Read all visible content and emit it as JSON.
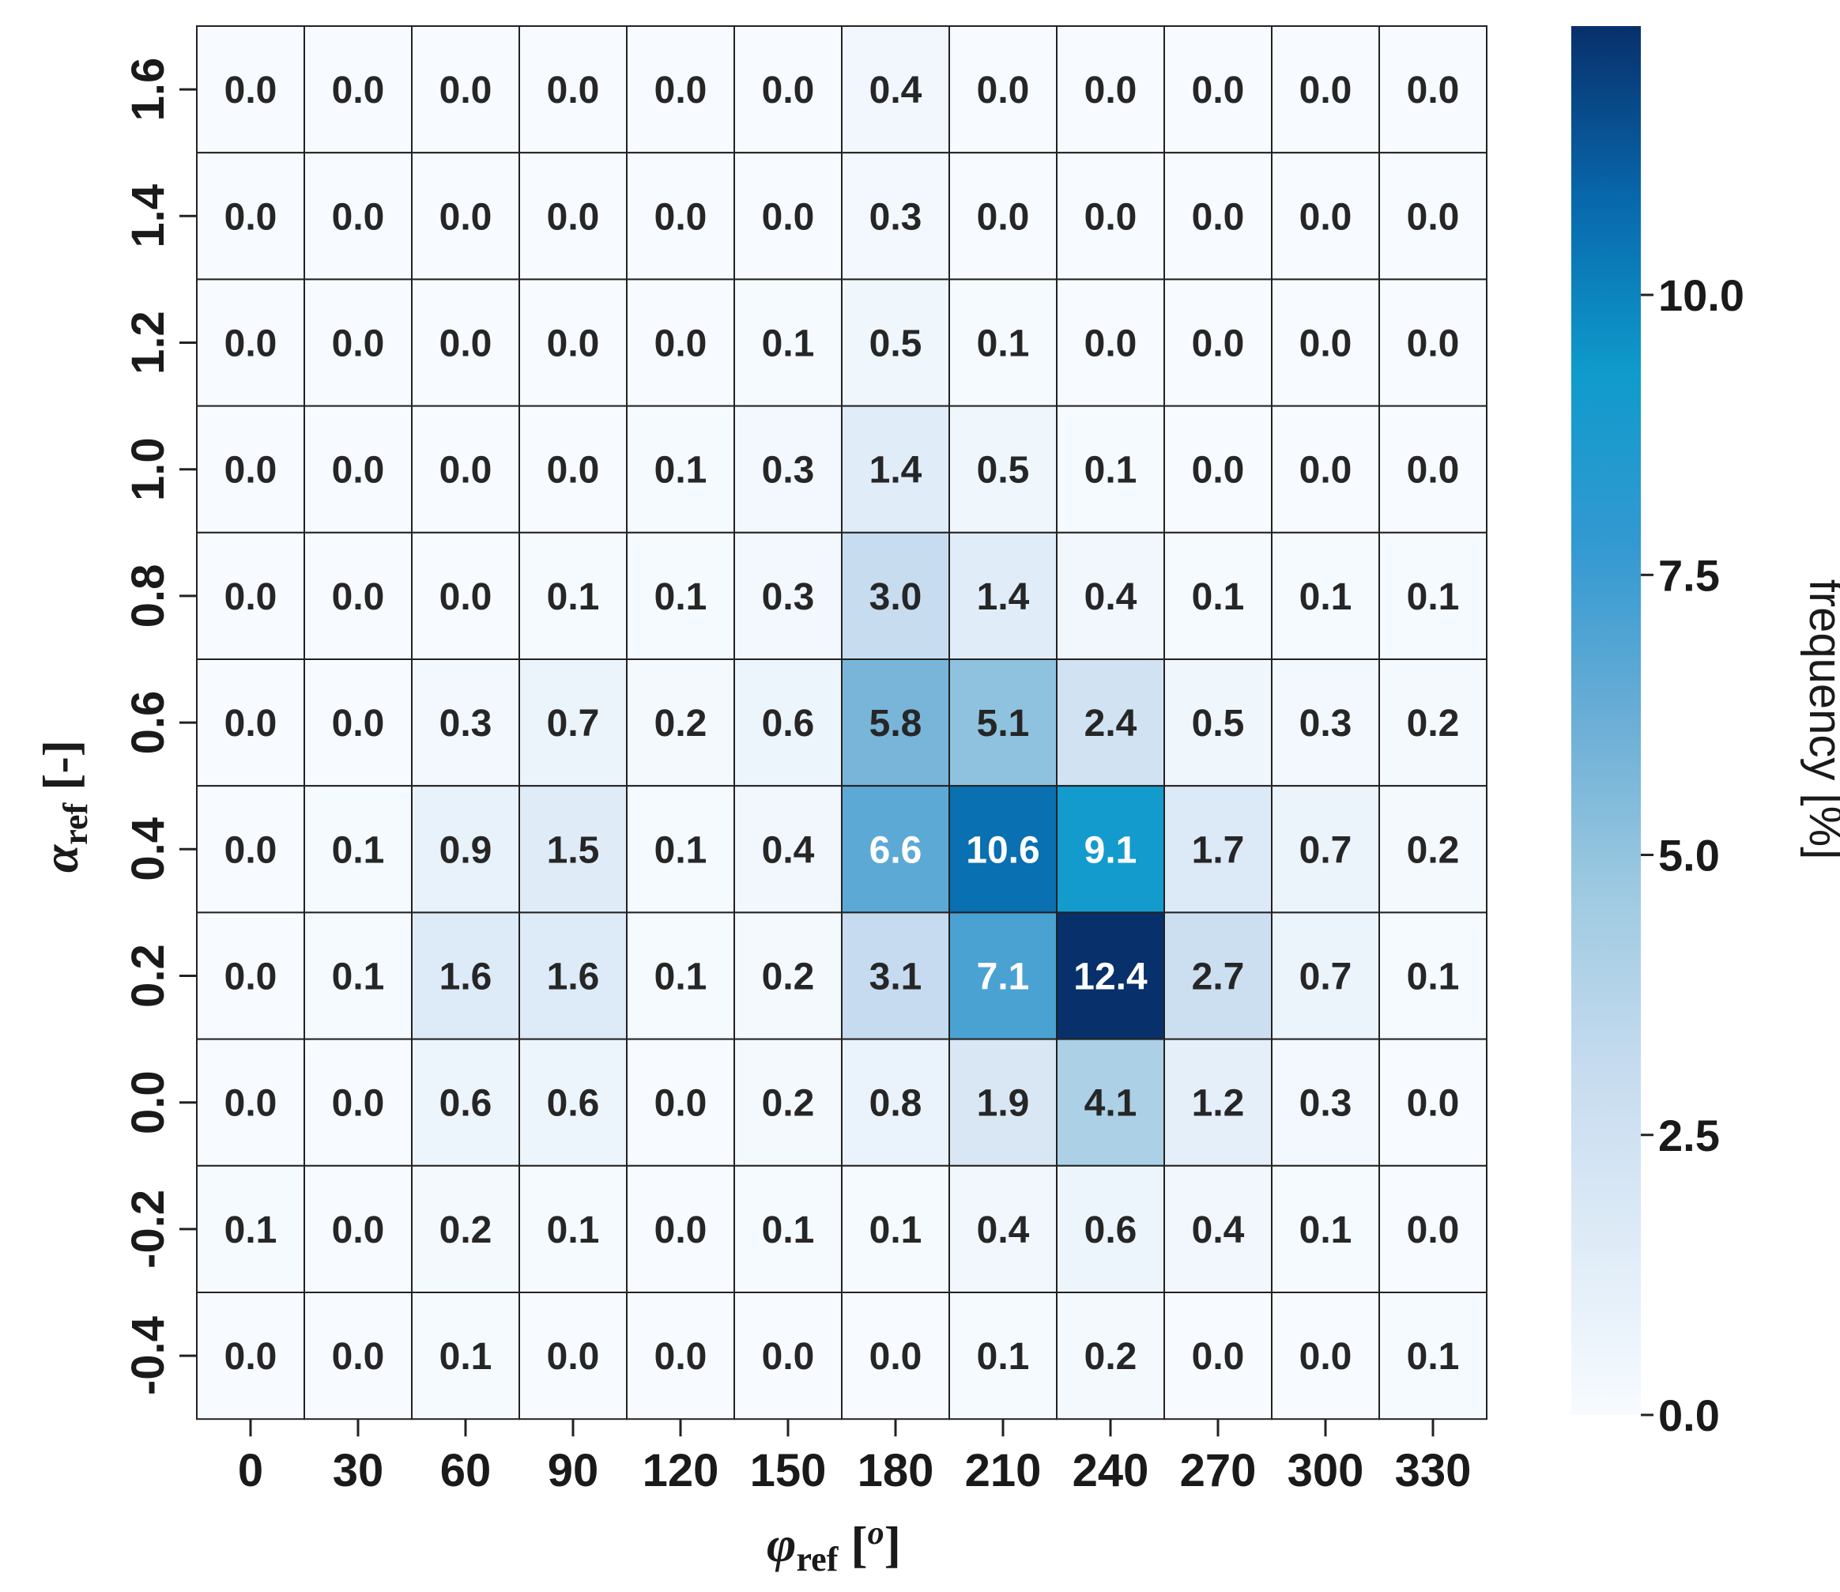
{
  "chart_data": {
    "type": "heatmap",
    "x_categories": [
      "0",
      "30",
      "60",
      "90",
      "120",
      "150",
      "180",
      "210",
      "240",
      "270",
      "300",
      "330"
    ],
    "y_categories": [
      "1.6",
      "1.4",
      "1.2",
      "1.0",
      "0.8",
      "0.6",
      "0.4",
      "0.2",
      "0.0",
      "-0.2",
      "-0.4"
    ],
    "values": [
      [
        0.0,
        0.0,
        0.0,
        0.0,
        0.0,
        0.0,
        0.4,
        0.0,
        0.0,
        0.0,
        0.0,
        0.0
      ],
      [
        0.0,
        0.0,
        0.0,
        0.0,
        0.0,
        0.0,
        0.3,
        0.0,
        0.0,
        0.0,
        0.0,
        0.0
      ],
      [
        0.0,
        0.0,
        0.0,
        0.0,
        0.0,
        0.1,
        0.5,
        0.1,
        0.0,
        0.0,
        0.0,
        0.0
      ],
      [
        0.0,
        0.0,
        0.0,
        0.0,
        0.1,
        0.3,
        1.4,
        0.5,
        0.1,
        0.0,
        0.0,
        0.0
      ],
      [
        0.0,
        0.0,
        0.0,
        0.1,
        0.1,
        0.3,
        3.0,
        1.4,
        0.4,
        0.1,
        0.1,
        0.1
      ],
      [
        0.0,
        0.0,
        0.3,
        0.7,
        0.2,
        0.6,
        5.8,
        5.1,
        2.4,
        0.5,
        0.3,
        0.2
      ],
      [
        0.0,
        0.1,
        0.9,
        1.5,
        0.1,
        0.4,
        6.6,
        10.6,
        9.1,
        1.7,
        0.7,
        0.2
      ],
      [
        0.0,
        0.1,
        1.6,
        1.6,
        0.1,
        0.2,
        3.1,
        7.1,
        12.4,
        2.7,
        0.7,
        0.1
      ],
      [
        0.0,
        0.0,
        0.6,
        0.6,
        0.0,
        0.2,
        0.8,
        1.9,
        4.1,
        1.2,
        0.3,
        0.0
      ],
      [
        0.1,
        0.0,
        0.2,
        0.1,
        0.0,
        0.1,
        0.1,
        0.4,
        0.6,
        0.4,
        0.1,
        0.0
      ],
      [
        0.0,
        0.0,
        0.1,
        0.0,
        0.0,
        0.0,
        0.0,
        0.1,
        0.2,
        0.0,
        0.0,
        0.1
      ]
    ],
    "xlabel": "φref [o]",
    "xlabel_main": "φ",
    "xlabel_sub": "ref",
    "xlabel_unit_open": " [",
    "xlabel_unit_sup": "o",
    "xlabel_unit_close": "]",
    "ylabel": "αref [-]",
    "ylabel_main": "α",
    "ylabel_sub": "ref",
    "ylabel_unit": " [-]",
    "colorbar": {
      "label": "frequency [%]",
      "range": [
        0,
        12.4
      ],
      "ticks": [
        0.0,
        2.5,
        5.0,
        7.5,
        10.0
      ],
      "tick_labels": [
        "0.0",
        "2.5",
        "5.0",
        "7.5",
        "10.0"
      ],
      "colormap": "Blues",
      "colors": [
        "#f7fbff",
        "#deebf7",
        "#c6dbef",
        "#9ecae1",
        "#6baed6",
        "#3399d1",
        "#0f9bcc",
        "#0868ac",
        "#08306b"
      ]
    },
    "grid": true
  }
}
